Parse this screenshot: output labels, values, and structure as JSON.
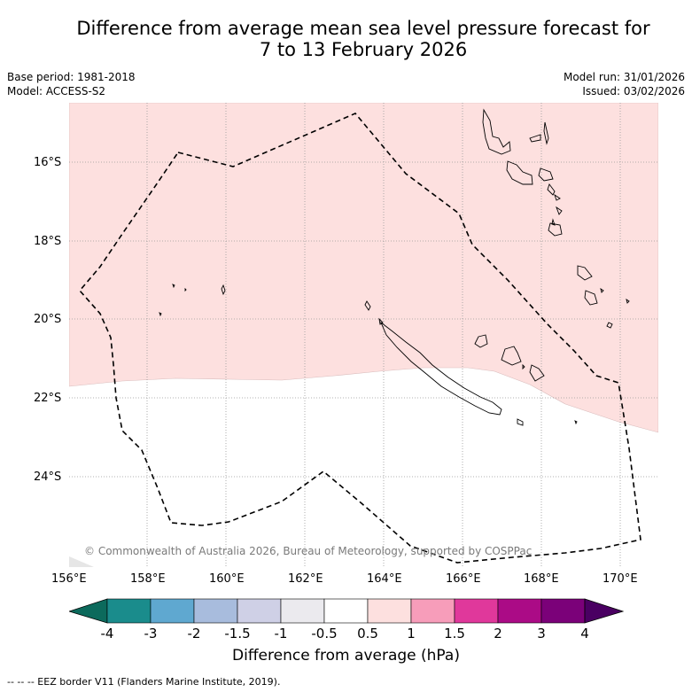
{
  "title": {
    "line1": "Difference from average mean sea level pressure forecast for",
    "line2": "7 to 13 February 2026"
  },
  "meta": {
    "base_period": "Base period: 1981-2018",
    "model": "Model: ACCESS-S2",
    "model_run": "Model run: 31/01/2026",
    "issued": "Issued: 03/02/2026"
  },
  "map": {
    "lat_labels": [
      "16°S",
      "18°S",
      "20°S",
      "22°S",
      "24°S"
    ],
    "lon_labels": [
      "156°E",
      "158°E",
      "160°E",
      "162°E",
      "164°E",
      "166°E",
      "168°E",
      "170°E"
    ],
    "copyright": "© Commonwealth of Australia 2026, Bureau of Meteorology, supported by COSPPac",
    "anomaly_color_north": "#fde0df",
    "anomaly_color_south": "#ffffff"
  },
  "colorbar": {
    "title": "Difference from average (hPa)",
    "ticks": [
      "-4",
      "-3",
      "-2",
      "-1.5",
      "-1",
      "-0.5",
      "0.5",
      "1",
      "1.5",
      "2",
      "3",
      "4"
    ],
    "colors": [
      "#1a8c8c",
      "#5fa8d0",
      "#a8bcdd",
      "#cfd0e6",
      "#ebeaee",
      "#ffffff",
      "#fde0df",
      "#f79dba",
      "#e0389b",
      "#ab0b86",
      "#7b0179"
    ],
    "extend_low_color": "#0c6a5c",
    "extend_high_color": "#4a0062"
  },
  "footer": {
    "legend": "-- -- -- EEZ border V11 (Flanders Marine Institute, 2019)."
  }
}
